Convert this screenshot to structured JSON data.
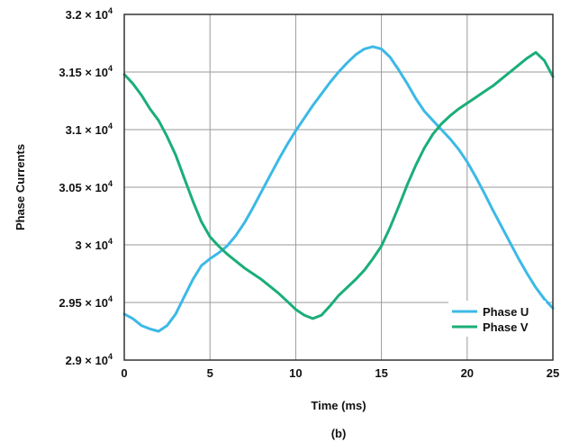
{
  "chart_data": {
    "type": "line",
    "xlabel": "Time (ms)",
    "ylabel": "Phase Currents",
    "caption": "(b)",
    "xlim": [
      0,
      25
    ],
    "ylim": [
      29000,
      32000
    ],
    "x_ticks": [
      0,
      5,
      10,
      15,
      20,
      25
    ],
    "x_tick_labels": [
      "0",
      "5",
      "10",
      "15",
      "20",
      "25"
    ],
    "y_ticks": [
      29000,
      29500,
      30000,
      30500,
      31000,
      31500,
      32000
    ],
    "y_tick_labels": [
      {
        "mantissa": "2.9 × 10",
        "exp": "4"
      },
      {
        "mantissa": "2.95 × 10",
        "exp": "4"
      },
      {
        "mantissa": "3 × 10",
        "exp": "4"
      },
      {
        "mantissa": "3.05 × 10",
        "exp": "4"
      },
      {
        "mantissa": "3.1 × 10",
        "exp": "4"
      },
      {
        "mantissa": "3.15 × 10",
        "exp": "4"
      },
      {
        "mantissa": "3.2 × 10",
        "exp": "4"
      }
    ],
    "grid": true,
    "legend_position": "bottom-right",
    "series": [
      {
        "name": "Phase U",
        "color": "#3cb9e6",
        "x": [
          0,
          0.5,
          1,
          1.5,
          2,
          2.5,
          3,
          3.5,
          4,
          4.5,
          5,
          5.5,
          6,
          6.5,
          7,
          7.5,
          8,
          8.5,
          9,
          9.5,
          10,
          10.5,
          11,
          11.5,
          12,
          12.5,
          13,
          13.5,
          14,
          14.5,
          15,
          15.5,
          16,
          16.5,
          17,
          17.5,
          18,
          18.5,
          19,
          19.5,
          20,
          20.5,
          21,
          21.5,
          22,
          22.5,
          23,
          23.5,
          24,
          24.5,
          25
        ],
        "y": [
          29400,
          29360,
          29300,
          29270,
          29250,
          29300,
          29400,
          29550,
          29700,
          29820,
          29880,
          29930,
          29990,
          30080,
          30190,
          30320,
          30460,
          30600,
          30740,
          30870,
          30990,
          31100,
          31210,
          31310,
          31410,
          31500,
          31580,
          31650,
          31700,
          31720,
          31700,
          31630,
          31520,
          31400,
          31270,
          31160,
          31080,
          31000,
          30920,
          30830,
          30720,
          30590,
          30450,
          30300,
          30160,
          30020,
          29880,
          29750,
          29630,
          29530,
          29450
        ]
      },
      {
        "name": "Phase V",
        "color": "#1aae78",
        "x": [
          0,
          0.5,
          1,
          1.5,
          2,
          2.5,
          3,
          3.5,
          4,
          4.5,
          5,
          5.5,
          6,
          6.5,
          7,
          7.5,
          8,
          8.5,
          9,
          9.5,
          10,
          10.5,
          11,
          11.5,
          12,
          12.5,
          13,
          13.5,
          14,
          14.5,
          15,
          15.5,
          16,
          16.5,
          17,
          17.5,
          18,
          18.5,
          19,
          19.5,
          20,
          20.5,
          21,
          21.5,
          22,
          22.5,
          23,
          23.5,
          24,
          24.5,
          25
        ],
        "y": [
          31480,
          31400,
          31300,
          31180,
          31080,
          30940,
          30780,
          30580,
          30380,
          30200,
          30070,
          29990,
          29920,
          29860,
          29800,
          29750,
          29700,
          29640,
          29580,
          29510,
          29440,
          29390,
          29360,
          29390,
          29470,
          29560,
          29630,
          29700,
          29780,
          29880,
          29990,
          30150,
          30330,
          30520,
          30690,
          30840,
          30960,
          31050,
          31120,
          31180,
          31230,
          31280,
          31330,
          31380,
          31440,
          31500,
          31560,
          31620,
          31670,
          31600,
          31460
        ]
      }
    ]
  }
}
